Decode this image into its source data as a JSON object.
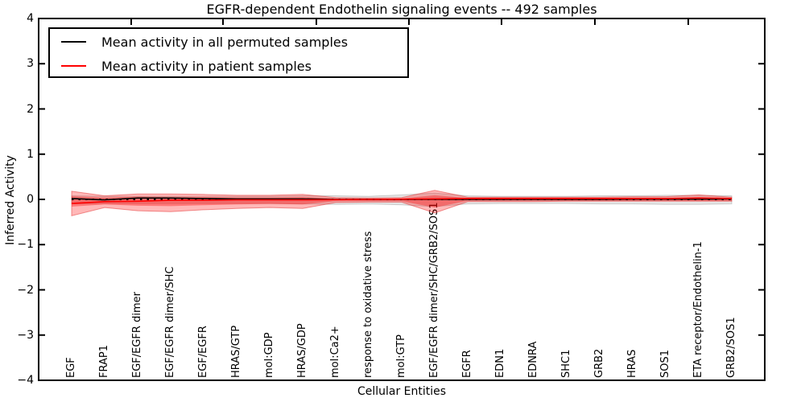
{
  "title": "EGFR-dependent Endothelin signaling events -- 492 samples",
  "axes": {
    "ylabel": "Inferred Activity",
    "xlabel": "Cellular Entities",
    "ylim": [
      -4,
      4
    ],
    "ytick_labels": [
      "4",
      "3",
      "2",
      "1",
      "0",
      "−1",
      "−2",
      "−3",
      "−4"
    ],
    "ytick_values": [
      4,
      3,
      2,
      1,
      0,
      -1,
      -2,
      -3,
      -4
    ]
  },
  "legend": {
    "items": [
      {
        "label": "Mean activity in all permuted samples",
        "color": "#000000"
      },
      {
        "label": "Mean activity in patient samples",
        "color": "#ff0000"
      }
    ]
  },
  "colors": {
    "permuted_line": "#000000",
    "patient_line": "#ff0000",
    "patient_band_outer": "rgba(255,0,0,0.28)",
    "patient_band_edge": "rgba(230,60,60,0.55)",
    "patient_band_inner": "rgba(255,0,0,0.35)",
    "permuted_band": "rgba(0,0,0,0.10)",
    "permuted_band_edge": "rgba(0,0,0,0.16)",
    "zero_line": "#000000",
    "frame": "#000000"
  },
  "chart_data": {
    "type": "area",
    "title": "EGFR-dependent Endothelin signaling events -- 492 samples",
    "xlabel": "Cellular Entities",
    "ylabel": "Inferred Activity",
    "ylim": [
      -4,
      4
    ],
    "grid": false,
    "legend_position": "upper left",
    "categories": [
      "EGF",
      "FRAP1",
      "EGF/EGFR dimer",
      "EGF/EGFR dimer/SHC",
      "EGF/EGFR",
      "HRAS/GTP",
      "mol:GDP",
      "HRAS/GDP",
      "mol:Ca2+",
      "response to oxidative stress",
      "mol:GTP",
      "EGF/EGFR dimer/SHC/GRB2/SOS1",
      "EGFR",
      "EDN1",
      "EDNRA",
      "SHC1",
      "GRB2",
      "HRAS",
      "SOS1",
      "ETA receptor/Endothelin-1",
      "GRB2/SOS1"
    ],
    "series": [
      {
        "name": "Mean activity in all permuted samples",
        "values": [
          0.02,
          -0.01,
          0.03,
          0.03,
          0.02,
          0.01,
          0.01,
          0.01,
          0.0,
          0.0,
          0.0,
          0.0,
          0.0,
          0.0,
          0.0,
          0.0,
          0.0,
          0.005,
          0.005,
          0.005,
          0.01
        ]
      },
      {
        "name": "Mean activity in patient samples",
        "values": [
          -0.09,
          -0.05,
          -0.04,
          -0.02,
          -0.02,
          -0.01,
          -0.01,
          -0.01,
          -0.005,
          0.0,
          0.005,
          0.01,
          0.02,
          0.02,
          0.02,
          0.02,
          0.02,
          0.02,
          0.02,
          0.03,
          0.02
        ]
      }
    ],
    "bands": {
      "patient_outer_upper": [
        0.18,
        0.08,
        0.12,
        0.12,
        0.11,
        0.09,
        0.09,
        0.11,
        0.04,
        0.03,
        0.04,
        0.2,
        0.05,
        0.05,
        0.05,
        0.05,
        0.05,
        0.06,
        0.06,
        0.1,
        0.05
      ],
      "patient_outer_lower": [
        -0.36,
        -0.18,
        -0.25,
        -0.27,
        -0.23,
        -0.2,
        -0.18,
        -0.2,
        -0.07,
        -0.06,
        -0.06,
        -0.3,
        -0.05,
        -0.05,
        -0.05,
        -0.04,
        -0.04,
        -0.04,
        -0.04,
        -0.04,
        -0.04
      ],
      "patient_inner_upper": [
        0.07,
        0.04,
        0.06,
        0.05,
        0.05,
        0.04,
        0.04,
        0.05,
        0.02,
        0.01,
        0.02,
        0.09,
        0.03,
        0.03,
        0.03,
        0.03,
        0.03,
        0.03,
        0.03,
        0.05,
        0.03
      ],
      "patient_inner_lower": [
        -0.16,
        -0.11,
        -0.14,
        -0.15,
        -0.13,
        -0.11,
        -0.1,
        -0.11,
        -0.04,
        -0.04,
        -0.04,
        -0.18,
        -0.03,
        -0.03,
        -0.03,
        -0.03,
        -0.03,
        -0.03,
        -0.03,
        -0.03,
        -0.03
      ],
      "permuted_upper": [
        0.08,
        0.07,
        0.07,
        0.07,
        0.07,
        0.07,
        0.07,
        0.08,
        0.08,
        0.07,
        0.1,
        0.14,
        0.08,
        0.07,
        0.07,
        0.07,
        0.08,
        0.08,
        0.09,
        0.09,
        0.08
      ],
      "permuted_lower": [
        -0.1,
        -0.09,
        -0.09,
        -0.09,
        -0.09,
        -0.09,
        -0.09,
        -0.1,
        -0.11,
        -0.1,
        -0.12,
        -0.16,
        -0.1,
        -0.09,
        -0.09,
        -0.09,
        -0.1,
        -0.1,
        -0.11,
        -0.11,
        -0.1
      ]
    }
  }
}
